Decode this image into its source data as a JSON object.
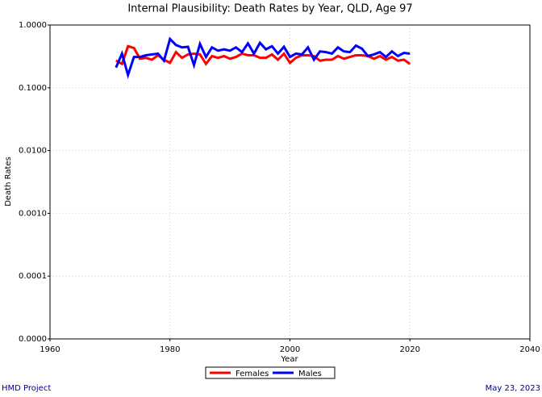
{
  "chart_data": {
    "type": "line",
    "title": "Internal Plausibility: Death Rates by Year, QLD, Age 97",
    "xlabel": "Year",
    "ylabel": "Death Rates",
    "footer_left": "HMD Project",
    "footer_right": "May 23, 2023",
    "x": [
      1971,
      1972,
      1973,
      1974,
      1975,
      1976,
      1977,
      1978,
      1979,
      1980,
      1981,
      1982,
      1983,
      1984,
      1985,
      1986,
      1987,
      1988,
      1989,
      1990,
      1991,
      1992,
      1993,
      1994,
      1995,
      1996,
      1997,
      1998,
      1999,
      2000,
      2001,
      2002,
      2003,
      2004,
      2005,
      2006,
      2007,
      2008,
      2009,
      2010,
      2011,
      2012,
      2013,
      2014,
      2015,
      2016,
      2017,
      2018,
      2019,
      2020
    ],
    "series": [
      {
        "name": "Females",
        "color": "#ff0000",
        "values": [
          0.27,
          0.24,
          0.46,
          0.43,
          0.29,
          0.3,
          0.28,
          0.33,
          0.28,
          0.25,
          0.37,
          0.3,
          0.34,
          0.35,
          0.34,
          0.24,
          0.32,
          0.3,
          0.32,
          0.29,
          0.31,
          0.35,
          0.33,
          0.33,
          0.3,
          0.3,
          0.34,
          0.28,
          0.35,
          0.25,
          0.3,
          0.33,
          0.33,
          0.32,
          0.27,
          0.28,
          0.28,
          0.32,
          0.29,
          0.31,
          0.33,
          0.33,
          0.32,
          0.29,
          0.32,
          0.28,
          0.31,
          0.27,
          0.28,
          0.24
        ]
      },
      {
        "name": "Males",
        "color": "#0000ff",
        "values": [
          0.21,
          0.35,
          0.16,
          0.31,
          0.31,
          0.33,
          0.34,
          0.35,
          0.27,
          0.6,
          0.48,
          0.44,
          0.45,
          0.23,
          0.5,
          0.31,
          0.44,
          0.39,
          0.41,
          0.39,
          0.44,
          0.37,
          0.51,
          0.35,
          0.52,
          0.41,
          0.46,
          0.35,
          0.45,
          0.31,
          0.35,
          0.34,
          0.44,
          0.28,
          0.38,
          0.37,
          0.35,
          0.44,
          0.38,
          0.37,
          0.47,
          0.42,
          0.32,
          0.34,
          0.37,
          0.31,
          0.38,
          0.32,
          0.36,
          0.35
        ]
      }
    ],
    "xlim": [
      1960,
      2040
    ],
    "xticks": [
      1960,
      1980,
      2000,
      2020,
      2040
    ],
    "ylim": [
      1e-05,
      1
    ],
    "log_y": true,
    "yticks": [
      {
        "value": 1e-05,
        "label": "0.0000"
      },
      {
        "value": 0.0001,
        "label": "0.0001"
      },
      {
        "value": 0.001,
        "label": "0.0010"
      },
      {
        "value": 0.01,
        "label": "0.0100"
      },
      {
        "value": 0.1,
        "label": "0.1000"
      },
      {
        "value": 1,
        "label": "1.0000"
      }
    ],
    "grid": true,
    "legend": "bottom"
  }
}
